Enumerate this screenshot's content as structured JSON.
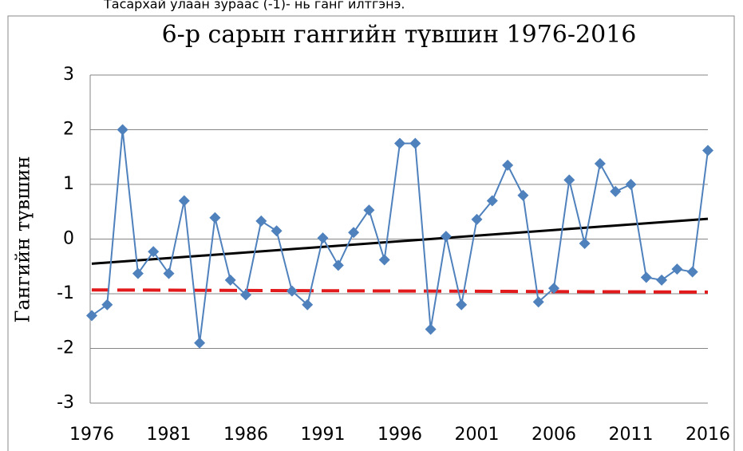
{
  "note_text": "Тасархай улаан зураас (-1)- нь ганг илтгэнэ.",
  "chart_data": {
    "type": "line",
    "title": "6-р сарын гангийн түвшин 1976-2016",
    "ylabel": "Гангийн түвшин",
    "x": [
      1976,
      1977,
      1978,
      1979,
      1980,
      1981,
      1982,
      1983,
      1984,
      1985,
      1986,
      1987,
      1988,
      1989,
      1990,
      1991,
      1992,
      1993,
      1994,
      1995,
      1996,
      1997,
      1998,
      1999,
      2000,
      2001,
      2002,
      2003,
      2004,
      2005,
      2006,
      2007,
      2008,
      2009,
      2010,
      2011,
      2012,
      2013,
      2014,
      2015,
      2016
    ],
    "series": [
      {
        "color": "#4f81bd",
        "values": [
          -1.4,
          -1.2,
          2.0,
          -0.63,
          -0.23,
          -0.63,
          0.7,
          -1.9,
          0.39,
          -0.75,
          -1.02,
          0.33,
          0.15,
          -0.95,
          -1.2,
          0.02,
          -0.48,
          0.12,
          0.53,
          -0.38,
          1.75,
          1.75,
          -1.65,
          0.05,
          -1.2,
          0.36,
          0.7,
          1.35,
          0.8,
          -1.15,
          -0.9,
          1.08,
          -0.08,
          1.38,
          0.87,
          1.0,
          -0.7,
          -0.75,
          -0.55,
          -0.6,
          1.62
        ]
      }
    ],
    "trend": {
      "color": "#000000",
      "values": [
        -0.45,
        0.37
      ]
    },
    "threshold": {
      "color": "#e31a1c",
      "values": [
        -0.93,
        -0.97
      ]
    },
    "xlim": [
      1976,
      2016
    ],
    "xticks": [
      1976,
      1981,
      1986,
      1991,
      1996,
      2001,
      2006,
      2011,
      2016
    ],
    "ylim": [
      -3,
      3
    ],
    "yticks": [
      -3,
      -2,
      -1,
      0,
      1,
      2,
      3
    ],
    "grid": true
  }
}
